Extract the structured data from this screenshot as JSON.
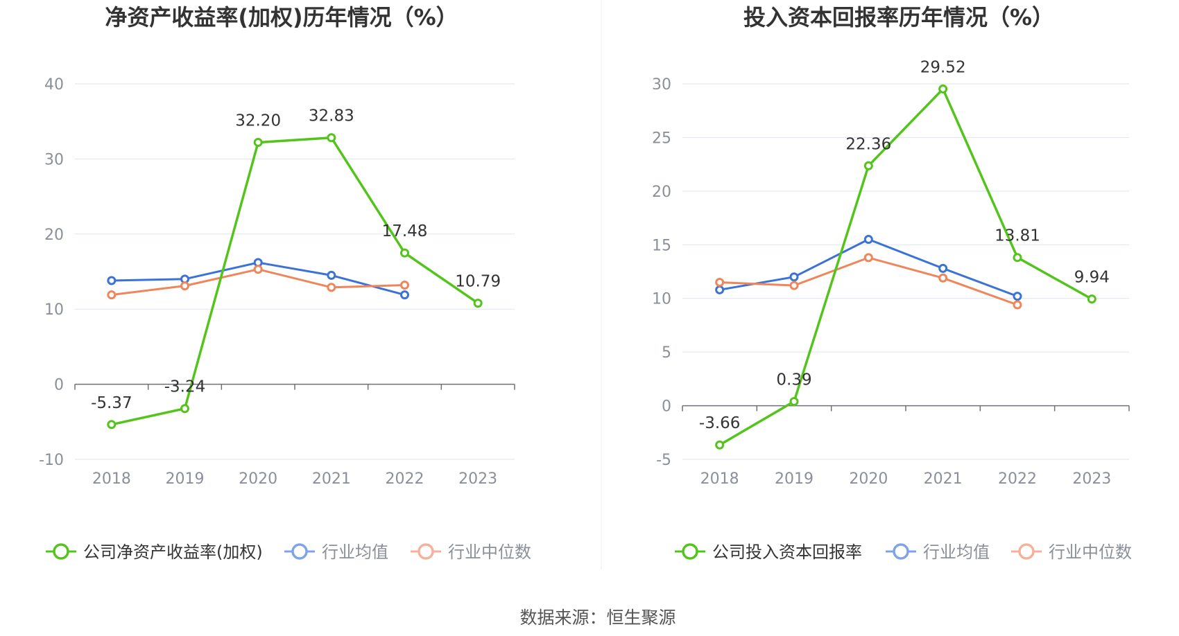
{
  "source": {
    "text": "数据来源：恒生聚源"
  },
  "chart_data": [
    {
      "type": "line",
      "title": "净资产收益率(加权)历年情况（%）",
      "xlabel": "",
      "ylabel": "",
      "categories": [
        "2018",
        "2019",
        "2020",
        "2021",
        "2022",
        "2023"
      ],
      "ylim": [
        -10,
        40
      ],
      "yticks": [
        -10,
        0,
        10,
        20,
        30,
        40
      ],
      "grid": true,
      "legend_position": "bottom",
      "series": [
        {
          "name": "公司净资产收益率(加权)",
          "color": "#52c41a",
          "values": [
            -5.37,
            -3.24,
            32.2,
            32.83,
            17.48,
            10.79
          ],
          "data_labels": [
            "-5.37",
            "-3.24",
            "32.20",
            "32.83",
            "17.48",
            "10.79"
          ]
        },
        {
          "name": "行业均值",
          "color": "#3a72d8",
          "values": [
            13.8,
            14.0,
            16.2,
            14.5,
            11.9,
            null
          ]
        },
        {
          "name": "行业中位数",
          "color": "#f0855a",
          "values": [
            11.9,
            13.1,
            15.3,
            12.9,
            13.2,
            null
          ]
        }
      ]
    },
    {
      "type": "line",
      "title": "投入资本回报率历年情况（%）",
      "xlabel": "",
      "ylabel": "",
      "categories": [
        "2018",
        "2019",
        "2020",
        "2021",
        "2022",
        "2023"
      ],
      "ylim": [
        -5,
        30
      ],
      "yticks": [
        -5,
        0,
        5,
        10,
        15,
        20,
        25,
        30
      ],
      "grid": true,
      "legend_position": "bottom",
      "series": [
        {
          "name": "公司投入资本回报率",
          "color": "#52c41a",
          "values": [
            -3.66,
            0.39,
            22.36,
            29.52,
            13.81,
            9.94
          ],
          "data_labels": [
            "-3.66",
            "0.39",
            "22.36",
            "29.52",
            "13.81",
            "9.94"
          ]
        },
        {
          "name": "行业均值",
          "color": "#3a72d8",
          "values": [
            10.8,
            12.0,
            15.5,
            12.8,
            10.2,
            null
          ]
        },
        {
          "name": "行业中位数",
          "color": "#f0855a",
          "values": [
            11.5,
            11.2,
            13.8,
            11.9,
            9.4,
            null
          ]
        }
      ]
    }
  ]
}
